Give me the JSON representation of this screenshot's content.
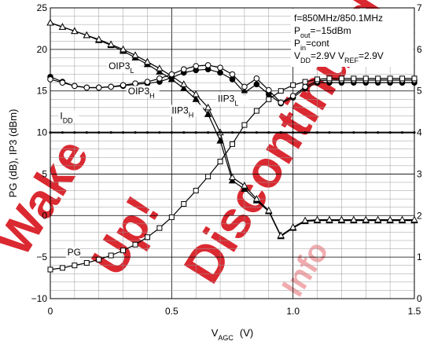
{
  "chart_data": {
    "type": "line",
    "xlabel_main": "V",
    "xlabel_sub": "AGC",
    "xlabel_unit": "(V)",
    "ylabel_left": "PG   (dB), IP3   (dBm)",
    "xlim": [
      0,
      1.5
    ],
    "ylim_left": [
      -10,
      25
    ],
    "ylim_right": [
      0,
      7
    ],
    "x_ticks": [
      "0",
      "0.5",
      "1.0",
      "1.5"
    ],
    "y_ticks_left": [
      "25",
      "20",
      "15",
      "10",
      "5",
      "0",
      "−5",
      "−10"
    ],
    "y_ticks_right": [
      "7",
      "6",
      "5",
      "4",
      "3",
      "2",
      "1",
      "0"
    ],
    "grid": true,
    "conditions": [
      {
        "parts": [
          {
            "t": "f=850MHz/850.1MHz"
          }
        ]
      },
      {
        "parts": [
          {
            "t": "P"
          },
          {
            "t": "out",
            "sub": true
          },
          {
            "t": "=−15dBm"
          }
        ]
      },
      {
        "parts": [
          {
            "t": "P"
          },
          {
            "t": "in",
            "sub": true
          },
          {
            "t": "=cont"
          }
        ]
      },
      {
        "parts": [
          {
            "t": "V"
          },
          {
            "t": "DD",
            "sub": true
          },
          {
            "t": "=2.9V  V"
          },
          {
            "t": "REF",
            "sub": true
          },
          {
            "t": "=2.9V"
          }
        ]
      }
    ],
    "series": [
      {
        "name_main": "IIP3",
        "name_sub": "H",
        "marker": "filled-triangle",
        "color": "#000000",
        "x": [
          0,
          0.05,
          0.1,
          0.15,
          0.2,
          0.25,
          0.3,
          0.35,
          0.4,
          0.45,
          0.5,
          0.55,
          0.6,
          0.65,
          0.7,
          0.75,
          0.8,
          0.85,
          0.9,
          0.95,
          1.0,
          1.05,
          1.1,
          1.15,
          1.2,
          1.25,
          1.3,
          1.35,
          1.4,
          1.45,
          1.5
        ],
        "y": [
          23.2,
          22.7,
          22.2,
          21.7,
          21.1,
          20.5,
          19.8,
          19.0,
          18.2,
          17.3,
          16.4,
          15.3,
          14.0,
          12.2,
          9.0,
          4.2,
          3.2,
          1.8,
          0.5,
          -2.5,
          -1.5,
          -0.7,
          -0.6,
          -0.6,
          -0.6,
          -0.6,
          -0.6,
          -0.6,
          -0.6,
          -0.6,
          -0.6
        ]
      },
      {
        "name_main": "IIP3",
        "name_sub": "L",
        "marker": "open-triangle",
        "color": "#000000",
        "x": [
          0,
          0.05,
          0.1,
          0.15,
          0.2,
          0.25,
          0.3,
          0.35,
          0.4,
          0.45,
          0.5,
          0.55,
          0.6,
          0.65,
          0.7,
          0.75,
          0.8,
          0.85,
          0.9,
          0.95,
          1.0,
          1.05,
          1.1,
          1.15,
          1.2,
          1.25,
          1.3,
          1.35,
          1.4,
          1.45,
          1.5
        ],
        "y": [
          23.2,
          22.7,
          22.2,
          21.7,
          21.2,
          20.6,
          20.0,
          19.3,
          18.5,
          17.7,
          16.8,
          15.8,
          14.6,
          13.0,
          10.0,
          4.6,
          3.6,
          2.0,
          0.6,
          -2.4,
          -1.4,
          -0.6,
          -0.5,
          -0.5,
          -0.5,
          -0.5,
          -0.5,
          -0.5,
          -0.5,
          -0.5,
          -0.5
        ]
      },
      {
        "name_main": "OIP3",
        "name_sub": "H",
        "marker": "filled-circle",
        "color": "#000000",
        "x": [
          0,
          0.05,
          0.1,
          0.15,
          0.2,
          0.25,
          0.3,
          0.35,
          0.4,
          0.45,
          0.5,
          0.55,
          0.6,
          0.65,
          0.7,
          0.75,
          0.8,
          0.85,
          0.9,
          0.95,
          1.0,
          1.05,
          1.1,
          1.15,
          1.2,
          1.25,
          1.3,
          1.35,
          1.4,
          1.45,
          1.5
        ],
        "y": [
          16.7,
          16.1,
          15.6,
          15.4,
          15.4,
          15.5,
          15.6,
          15.8,
          15.9,
          16.1,
          16.6,
          17.2,
          17.5,
          17.6,
          17.2,
          16.4,
          14.8,
          15.8,
          14.6,
          13.5,
          14.2,
          15.3,
          16.0,
          16.0,
          16.0,
          16.0,
          16.0,
          16.0,
          16.0,
          16.0,
          16.0
        ]
      },
      {
        "name_main": "OIP3",
        "name_sub": "L",
        "marker": "open-circle",
        "color": "#000000",
        "x": [
          0,
          0.05,
          0.1,
          0.15,
          0.2,
          0.25,
          0.3,
          0.35,
          0.4,
          0.45,
          0.5,
          0.55,
          0.6,
          0.65,
          0.7,
          0.75,
          0.8,
          0.85,
          0.9,
          0.95,
          1.0,
          1.05,
          1.1,
          1.15,
          1.2,
          1.25,
          1.3,
          1.35,
          1.4,
          1.45,
          1.5
        ],
        "y": [
          16.4,
          16.0,
          15.6,
          15.4,
          15.4,
          15.5,
          15.7,
          15.9,
          16.1,
          16.5,
          17.0,
          17.6,
          18.0,
          18.1,
          17.8,
          17.0,
          15.5,
          16.5,
          15.1,
          13.6,
          14.4,
          15.5,
          16.2,
          16.3,
          16.3,
          16.3,
          16.3,
          16.3,
          16.3,
          16.3,
          16.3
        ]
      },
      {
        "name_main": "I",
        "name_sub": "DD",
        "marker": "small-dot",
        "color": "#000000",
        "x": [
          0,
          0.05,
          0.1,
          0.15,
          0.2,
          0.25,
          0.3,
          0.35,
          0.4,
          0.45,
          0.5,
          0.55,
          0.6,
          0.65,
          0.7,
          0.75,
          0.8,
          0.85,
          0.9,
          0.95,
          1.0,
          1.05,
          1.1,
          1.15,
          1.2,
          1.25,
          1.3,
          1.35,
          1.4,
          1.45,
          1.5
        ],
        "y": [
          10,
          10,
          10,
          10,
          10,
          10,
          10,
          10,
          10,
          10,
          10,
          10,
          10,
          10,
          10,
          10,
          10,
          10,
          10,
          10,
          10,
          10,
          10,
          10,
          10,
          10,
          10,
          10,
          10,
          10,
          10
        ]
      },
      {
        "name_main": "PG",
        "name_sub": "",
        "marker": "open-square",
        "color": "#000000",
        "x": [
          0,
          0.05,
          0.1,
          0.15,
          0.2,
          0.25,
          0.3,
          0.35,
          0.4,
          0.45,
          0.5,
          0.55,
          0.6,
          0.65,
          0.7,
          0.75,
          0.8,
          0.85,
          0.9,
          0.95,
          1.0,
          1.05,
          1.1,
          1.15,
          1.2,
          1.25,
          1.3,
          1.35,
          1.4,
          1.45,
          1.5
        ],
        "y": [
          -6.5,
          -6.3,
          -6.0,
          -5.7,
          -5.3,
          -4.8,
          -4.2,
          -3.5,
          -2.6,
          -1.5,
          -0.2,
          1.4,
          3.0,
          4.7,
          6.5,
          8.6,
          10.9,
          12.6,
          14.0,
          15.0,
          15.7,
          16.1,
          16.4,
          16.5,
          16.5,
          16.5,
          16.5,
          16.5,
          16.5,
          16.5,
          16.5
        ]
      }
    ],
    "annotations": [
      {
        "main": "OIP3",
        "sub": "L",
        "x": 0.24,
        "y": 17.6
      },
      {
        "main": "OIP3",
        "sub": "H",
        "x": 0.32,
        "y": 14.6
      },
      {
        "main": "IIP3",
        "sub": "H",
        "x": 0.5,
        "y": 12.3
      },
      {
        "main": "IIP3",
        "sub": "L",
        "x": 0.69,
        "y": 13.7
      },
      {
        "main": "I",
        "sub": "DD",
        "x": 0.04,
        "y": 11.6
      },
      {
        "main": "PG",
        "sub": "",
        "x": 0.07,
        "y": -4.8
      }
    ],
    "watermark": "Wake Up! Discontinued Info"
  }
}
